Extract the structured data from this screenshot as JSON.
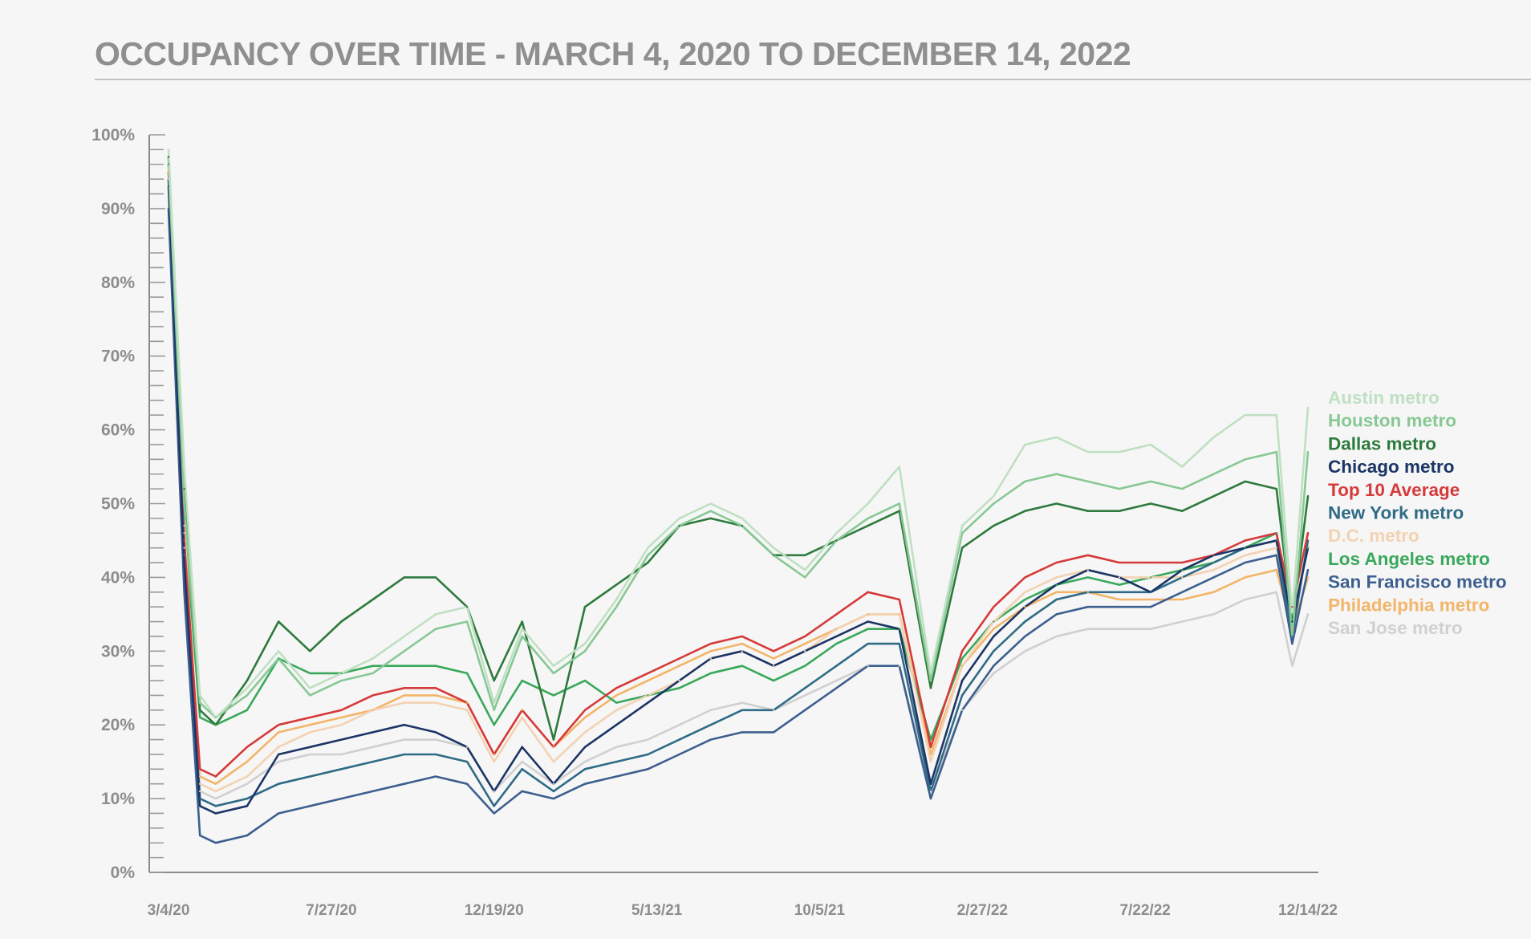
{
  "title": "OCCUPANCY OVER TIME - MARCH 4, 2020 TO DECEMBER 14, 2022",
  "chart_data": {
    "type": "line",
    "title": "OCCUPANCY OVER TIME - MARCH 4, 2020 TO DECEMBER 14, 2022",
    "xlabel": "",
    "ylabel": "",
    "ylim": [
      0,
      100
    ],
    "xlim": [
      "2020-03-04",
      "2022-12-14"
    ],
    "y_ticks": [
      "0%",
      "10%",
      "20%",
      "30%",
      "40%",
      "50%",
      "60%",
      "70%",
      "80%",
      "90%",
      "100%"
    ],
    "x_ticks": [
      {
        "label": "3/4/20",
        "date": "2020-03-04"
      },
      {
        "label": "7/27/20",
        "date": "2020-07-27"
      },
      {
        "label": "12/19/20",
        "date": "2020-12-19"
      },
      {
        "label": "5/13/21",
        "date": "2021-05-13"
      },
      {
        "label": "10/5/21",
        "date": "2021-10-05"
      },
      {
        "label": "2/27/22",
        "date": "2022-02-27"
      },
      {
        "label": "7/22/22",
        "date": "2022-07-22"
      },
      {
        "label": "12/14/22",
        "date": "2022-12-14"
      }
    ],
    "grid": false,
    "legend_position": "right",
    "x": [
      "2020-03-04",
      "2020-03-18",
      "2020-04-01",
      "2020-04-15",
      "2020-05-13",
      "2020-06-10",
      "2020-07-08",
      "2020-08-05",
      "2020-09-02",
      "2020-09-30",
      "2020-10-28",
      "2020-11-25",
      "2020-12-19",
      "2021-01-13",
      "2021-02-10",
      "2021-03-10",
      "2021-04-07",
      "2021-05-05",
      "2021-06-02",
      "2021-06-30",
      "2021-07-28",
      "2021-08-25",
      "2021-09-22",
      "2021-10-20",
      "2021-11-17",
      "2021-12-15",
      "2022-01-12",
      "2022-02-09",
      "2022-03-09",
      "2022-04-06",
      "2022-05-04",
      "2022-06-01",
      "2022-06-29",
      "2022-07-27",
      "2022-08-24",
      "2022-09-21",
      "2022-10-19",
      "2022-11-16",
      "2022-11-30",
      "2022-12-14"
    ],
    "series": [
      {
        "name": "Austin metro",
        "color": "#bfe0c2",
        "values": [
          98,
          55,
          24,
          21,
          25,
          30,
          25,
          27,
          29,
          32,
          35,
          36,
          23,
          33,
          28,
          31,
          37,
          44,
          48,
          50,
          48,
          44,
          41,
          46,
          50,
          55,
          27,
          47,
          51,
          58,
          59,
          57,
          57,
          58,
          55,
          59,
          62,
          62,
          35,
          63
        ]
      },
      {
        "name": "Houston metro",
        "color": "#88c895",
        "values": [
          96,
          50,
          23,
          21,
          24,
          29,
          24,
          26,
          27,
          30,
          33,
          34,
          22,
          32,
          27,
          30,
          36,
          43,
          47,
          49,
          47,
          43,
          40,
          45,
          48,
          50,
          26,
          46,
          50,
          53,
          54,
          53,
          52,
          53,
          52,
          54,
          56,
          57,
          32,
          57
        ]
      },
      {
        "name": "Dallas metro",
        "color": "#2e7a3d",
        "values": [
          97,
          52,
          22,
          20,
          26,
          34,
          30,
          34,
          37,
          40,
          40,
          36,
          26,
          34,
          18,
          36,
          39,
          42,
          47,
          48,
          47,
          43,
          43,
          45,
          47,
          49,
          25,
          44,
          47,
          49,
          50,
          49,
          49,
          50,
          49,
          51,
          53,
          52,
          34,
          51
        ]
      },
      {
        "name": "Chicago metro",
        "color": "#1b3566",
        "values": [
          94,
          42,
          9,
          8,
          9,
          16,
          17,
          18,
          19,
          20,
          19,
          17,
          11,
          17,
          12,
          17,
          20,
          23,
          26,
          29,
          30,
          28,
          30,
          32,
          34,
          33,
          12,
          26,
          32,
          36,
          39,
          41,
          40,
          38,
          41,
          43,
          44,
          45,
          34,
          44
        ]
      },
      {
        "name": "Top 10 Average",
        "color": "#d63a3a",
        "values": [
          95,
          45,
          14,
          13,
          17,
          20,
          21,
          22,
          24,
          25,
          25,
          23,
          16,
          22,
          17,
          22,
          25,
          27,
          29,
          31,
          32,
          30,
          32,
          35,
          38,
          37,
          17,
          30,
          36,
          40,
          42,
          43,
          42,
          42,
          42,
          43,
          45,
          46,
          36,
          46
        ]
      },
      {
        "name": "New York metro",
        "color": "#2f6b86",
        "values": [
          93,
          43,
          10,
          9,
          10,
          12,
          13,
          14,
          15,
          16,
          16,
          15,
          9,
          14,
          11,
          14,
          15,
          16,
          18,
          20,
          22,
          22,
          25,
          28,
          31,
          31,
          11,
          24,
          30,
          34,
          37,
          38,
          38,
          38,
          40,
          42,
          44,
          45,
          32,
          45
        ]
      },
      {
        "name": "D.C. metro",
        "color": "#f3d2b3",
        "values": [
          95,
          47,
          12,
          11,
          13,
          17,
          19,
          20,
          22,
          23,
          23,
          22,
          15,
          21,
          15,
          19,
          22,
          24,
          26,
          29,
          30,
          28,
          30,
          33,
          35,
          35,
          15,
          28,
          34,
          38,
          40,
          41,
          40,
          40,
          40,
          41,
          43,
          44,
          35,
          44
        ]
      },
      {
        "name": "Los Angeles metro",
        "color": "#39a85b",
        "values": [
          96,
          48,
          21,
          20,
          22,
          29,
          27,
          27,
          28,
          28,
          28,
          27,
          20,
          26,
          24,
          26,
          23,
          24,
          25,
          27,
          28,
          26,
          28,
          31,
          33,
          33,
          18,
          29,
          34,
          37,
          39,
          40,
          39,
          40,
          41,
          42,
          44,
          46,
          35,
          44
        ]
      },
      {
        "name": "San Francisco metro",
        "color": "#3d5f8f",
        "values": [
          90,
          38,
          5,
          4,
          5,
          8,
          9,
          10,
          11,
          12,
          13,
          12,
          8,
          11,
          10,
          12,
          13,
          14,
          16,
          18,
          19,
          19,
          22,
          25,
          28,
          28,
          10,
          22,
          28,
          32,
          35,
          36,
          36,
          36,
          38,
          40,
          42,
          43,
          31,
          41
        ]
      },
      {
        "name": "Philadelphia metro",
        "color": "#f2b56a",
        "values": [
          95,
          46,
          13,
          12,
          15,
          19,
          20,
          21,
          22,
          24,
          24,
          23,
          16,
          22,
          17,
          21,
          24,
          26,
          28,
          30,
          31,
          29,
          31,
          33,
          35,
          35,
          16,
          28,
          33,
          36,
          38,
          38,
          37,
          37,
          37,
          38,
          40,
          41,
          33,
          40
        ]
      },
      {
        "name": "San Jose metro",
        "color": "#d0d0d0",
        "values": [
          94,
          44,
          11,
          10,
          12,
          15,
          16,
          16,
          17,
          18,
          18,
          17,
          11,
          15,
          12,
          15,
          17,
          18,
          20,
          22,
          23,
          22,
          24,
          26,
          28,
          28,
          11,
          22,
          27,
          30,
          32,
          33,
          33,
          33,
          34,
          35,
          37,
          38,
          28,
          35
        ]
      }
    ]
  }
}
